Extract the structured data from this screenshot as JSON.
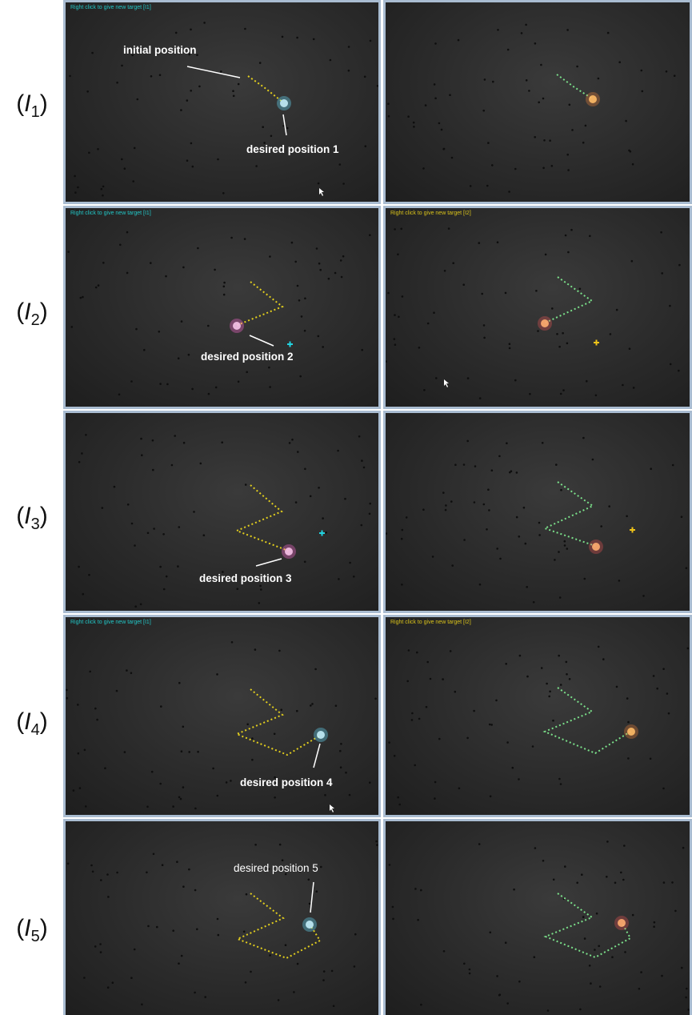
{
  "row_labels": [
    {
      "letter": "I",
      "index": "1"
    },
    {
      "letter": "I",
      "index": "2"
    },
    {
      "letter": "I",
      "index": "3"
    },
    {
      "letter": "I",
      "index": "4"
    },
    {
      "letter": "I",
      "index": "5"
    }
  ],
  "hints": {
    "left": "Right click to give new target [I1]",
    "right": "Right click to give new target [I2]"
  },
  "callouts": {
    "initial": "initial position",
    "pos1": "desired position 1",
    "pos2": "desired position 2",
    "pos3": "desired position 3",
    "pos4": "desired position 4",
    "pos5": "desired position 5"
  },
  "colors": {
    "left_trail": "#e3cf1e",
    "right_trail": "#7be08a",
    "target_cyan": "#22d3e0",
    "target_yellow": "#f0c419",
    "frame_border": "#a9bcd1"
  },
  "icons": [
    "mouse-cursor-icon",
    "target-cross-icon",
    "tool-tip-glow-icon"
  ]
}
